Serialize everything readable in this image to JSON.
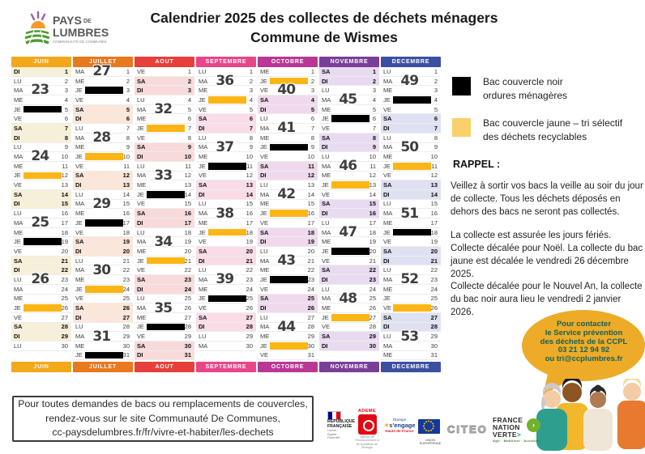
{
  "header": {
    "logo": {
      "name_top": "PAYS",
      "name_top_small": "DE",
      "name_bottom": "LUMBRES",
      "tagline": "COMMUNAUTÉ DE COMMUNES"
    },
    "title1": "Calendrier 2025 des collectes de déchets ménagers",
    "title2": "Commune de Wismes"
  },
  "colors": {
    "bar_black": "#000000",
    "bar_yellow": "#FBB515",
    "legend_yellow": "#F9D06A",
    "week_label": "#3F3F3F",
    "bubble_bg": "#EDAB27",
    "bubble_text": "#156058"
  },
  "months": [
    {
      "name": "JUIN",
      "color": "#F3A81B",
      "tint": "#F7F0D8",
      "days": [
        {
          "d": "DI",
          "n": 1
        },
        {
          "d": "LU",
          "n": 2
        },
        {
          "d": "MA",
          "n": 3,
          "wk": 23
        },
        {
          "d": "ME",
          "n": 4
        },
        {
          "d": "JE",
          "n": 5,
          "bar": "black"
        },
        {
          "d": "VE",
          "n": 6
        },
        {
          "d": "SA",
          "n": 7
        },
        {
          "d": "DI",
          "n": 8
        },
        {
          "d": "LU",
          "n": 9
        },
        {
          "d": "MA",
          "n": 10,
          "wk": 24
        },
        {
          "d": "ME",
          "n": 11
        },
        {
          "d": "JE",
          "n": 12,
          "bar": "yellow"
        },
        {
          "d": "VE",
          "n": 13
        },
        {
          "d": "SA",
          "n": 14
        },
        {
          "d": "DI",
          "n": 15
        },
        {
          "d": "LU",
          "n": 16
        },
        {
          "d": "MA",
          "n": 17,
          "wk": 25
        },
        {
          "d": "ME",
          "n": 18
        },
        {
          "d": "JE",
          "n": 19,
          "bar": "black"
        },
        {
          "d": "VE",
          "n": 20
        },
        {
          "d": "SA",
          "n": 21
        },
        {
          "d": "DI",
          "n": 22
        },
        {
          "d": "LU",
          "n": 23,
          "wk": 26
        },
        {
          "d": "MA",
          "n": 24
        },
        {
          "d": "ME",
          "n": 25
        },
        {
          "d": "JE",
          "n": 26,
          "bar": "yellow"
        },
        {
          "d": "VE",
          "n": 27
        },
        {
          "d": "SA",
          "n": 28
        },
        {
          "d": "DI",
          "n": 29
        },
        {
          "d": "LU",
          "n": 30
        }
      ]
    },
    {
      "name": "JUILLET",
      "color": "#E8791E",
      "tint": "#FBE6D9",
      "days": [
        {
          "d": "MA",
          "n": 1,
          "wk": 27
        },
        {
          "d": "ME",
          "n": 2
        },
        {
          "d": "JE",
          "n": 3,
          "bar": "black"
        },
        {
          "d": "VE",
          "n": 4
        },
        {
          "d": "SA",
          "n": 5
        },
        {
          "d": "DI",
          "n": 6
        },
        {
          "d": "LU",
          "n": 7
        },
        {
          "d": "MA",
          "n": 8,
          "wk": 28
        },
        {
          "d": "ME",
          "n": 9
        },
        {
          "d": "JE",
          "n": 10,
          "bar": "yellow"
        },
        {
          "d": "VE",
          "n": 11
        },
        {
          "d": "SA",
          "n": 12
        },
        {
          "d": "DI",
          "n": 13
        },
        {
          "d": "LU",
          "n": 14
        },
        {
          "d": "MA",
          "n": 15,
          "wk": 29
        },
        {
          "d": "ME",
          "n": 16
        },
        {
          "d": "JE",
          "n": 17,
          "bar": "black"
        },
        {
          "d": "VE",
          "n": 18
        },
        {
          "d": "SA",
          "n": 19
        },
        {
          "d": "DI",
          "n": 20
        },
        {
          "d": "LU",
          "n": 21
        },
        {
          "d": "MA",
          "n": 22,
          "wk": 30
        },
        {
          "d": "ME",
          "n": 23
        },
        {
          "d": "JE",
          "n": 24,
          "bar": "yellow"
        },
        {
          "d": "VE",
          "n": 25
        },
        {
          "d": "SA",
          "n": 26
        },
        {
          "d": "DI",
          "n": 27
        },
        {
          "d": "LU",
          "n": 28
        },
        {
          "d": "MA",
          "n": 29,
          "wk": 31
        },
        {
          "d": "ME",
          "n": 30
        },
        {
          "d": "JE",
          "n": 31,
          "bar": "black"
        }
      ]
    },
    {
      "name": "AOUT",
      "color": "#E6403A",
      "tint": "#F9DADB",
      "days": [
        {
          "d": "VE",
          "n": 1
        },
        {
          "d": "SA",
          "n": 2
        },
        {
          "d": "DI",
          "n": 3
        },
        {
          "d": "LU",
          "n": 4
        },
        {
          "d": "MA",
          "n": 5,
          "wk": 32
        },
        {
          "d": "ME",
          "n": 6
        },
        {
          "d": "JE",
          "n": 7,
          "bar": "yellow"
        },
        {
          "d": "VE",
          "n": 8
        },
        {
          "d": "SA",
          "n": 9
        },
        {
          "d": "DI",
          "n": 10
        },
        {
          "d": "LU",
          "n": 11
        },
        {
          "d": "MA",
          "n": 12,
          "wk": 33
        },
        {
          "d": "ME",
          "n": 13
        },
        {
          "d": "JE",
          "n": 14,
          "bar": "black"
        },
        {
          "d": "VE",
          "n": 15
        },
        {
          "d": "SA",
          "n": 16
        },
        {
          "d": "DI",
          "n": 17
        },
        {
          "d": "LU",
          "n": 18
        },
        {
          "d": "MA",
          "n": 19,
          "wk": 34
        },
        {
          "d": "ME",
          "n": 20
        },
        {
          "d": "JE",
          "n": 21,
          "bar": "yellow"
        },
        {
          "d": "VE",
          "n": 22
        },
        {
          "d": "SA",
          "n": 23
        },
        {
          "d": "DI",
          "n": 24
        },
        {
          "d": "LU",
          "n": 25
        },
        {
          "d": "MA",
          "n": 26,
          "wk": 35
        },
        {
          "d": "ME",
          "n": 27
        },
        {
          "d": "JE",
          "n": 28,
          "bar": "black"
        },
        {
          "d": "VE",
          "n": 29
        },
        {
          "d": "SA",
          "n": 30
        },
        {
          "d": "DI",
          "n": 31
        }
      ]
    },
    {
      "name": "SEPTEMBRE",
      "color": "#E74689",
      "tint": "#FADCE8",
      "days": [
        {
          "d": "LU",
          "n": 1
        },
        {
          "d": "MA",
          "n": 2,
          "wk": 36
        },
        {
          "d": "ME",
          "n": 3
        },
        {
          "d": "JE",
          "n": 4,
          "bar": "yellow"
        },
        {
          "d": "VE",
          "n": 5
        },
        {
          "d": "SA",
          "n": 6
        },
        {
          "d": "DI",
          "n": 7
        },
        {
          "d": "LU",
          "n": 8
        },
        {
          "d": "MA",
          "n": 9,
          "wk": 37
        },
        {
          "d": "ME",
          "n": 10
        },
        {
          "d": "JE",
          "n": 11,
          "bar": "black"
        },
        {
          "d": "VE",
          "n": 12
        },
        {
          "d": "SA",
          "n": 13
        },
        {
          "d": "DI",
          "n": 14
        },
        {
          "d": "LU",
          "n": 15
        },
        {
          "d": "MA",
          "n": 16,
          "wk": 38
        },
        {
          "d": "ME",
          "n": 17
        },
        {
          "d": "JE",
          "n": 18,
          "bar": "yellow"
        },
        {
          "d": "VE",
          "n": 19
        },
        {
          "d": "SA",
          "n": 20
        },
        {
          "d": "DI",
          "n": 21
        },
        {
          "d": "LU",
          "n": 22
        },
        {
          "d": "MA",
          "n": 23,
          "wk": 39
        },
        {
          "d": "ME",
          "n": 24
        },
        {
          "d": "JE",
          "n": 25,
          "bar": "black"
        },
        {
          "d": "VE",
          "n": 26
        },
        {
          "d": "SA",
          "n": 27
        },
        {
          "d": "DI",
          "n": 28
        },
        {
          "d": "LU",
          "n": 29
        },
        {
          "d": "MA",
          "n": 30
        }
      ]
    },
    {
      "name": "OCTOBRE",
      "color": "#B93895",
      "tint": "#F0D9ED",
      "days": [
        {
          "d": "ME",
          "n": 1
        },
        {
          "d": "JE",
          "n": 2,
          "bar": "yellow"
        },
        {
          "d": "VE",
          "n": 3,
          "wk": 40
        },
        {
          "d": "SA",
          "n": 4
        },
        {
          "d": "DI",
          "n": 5
        },
        {
          "d": "LU",
          "n": 6
        },
        {
          "d": "MA",
          "n": 7,
          "wk": 41
        },
        {
          "d": "ME",
          "n": 8
        },
        {
          "d": "JE",
          "n": 9,
          "bar": "black"
        },
        {
          "d": "VE",
          "n": 10
        },
        {
          "d": "SA",
          "n": 11
        },
        {
          "d": "DI",
          "n": 12
        },
        {
          "d": "LU",
          "n": 13
        },
        {
          "d": "MA",
          "n": 14,
          "wk": 42
        },
        {
          "d": "ME",
          "n": 15
        },
        {
          "d": "JE",
          "n": 16,
          "bar": "yellow"
        },
        {
          "d": "VE",
          "n": 17
        },
        {
          "d": "SA",
          "n": 18
        },
        {
          "d": "DI",
          "n": 19
        },
        {
          "d": "LU",
          "n": 20
        },
        {
          "d": "MA",
          "n": 21,
          "wk": 43
        },
        {
          "d": "ME",
          "n": 22
        },
        {
          "d": "JE",
          "n": 23,
          "bar": "black"
        },
        {
          "d": "VE",
          "n": 24
        },
        {
          "d": "SA",
          "n": 25
        },
        {
          "d": "DI",
          "n": 26
        },
        {
          "d": "LU",
          "n": 27
        },
        {
          "d": "MA",
          "n": 28,
          "wk": 44
        },
        {
          "d": "ME",
          "n": 29
        },
        {
          "d": "JE",
          "n": 30,
          "bar": "yellow"
        },
        {
          "d": "VE",
          "n": 31
        }
      ]
    },
    {
      "name": "NOVEMBRE",
      "color": "#7A3E99",
      "tint": "#E8DBF1",
      "days": [
        {
          "d": "SA",
          "n": 1
        },
        {
          "d": "DI",
          "n": 2
        },
        {
          "d": "LU",
          "n": 3
        },
        {
          "d": "MA",
          "n": 4,
          "wk": 45
        },
        {
          "d": "ME",
          "n": 5
        },
        {
          "d": "JE",
          "n": 6,
          "bar": "black"
        },
        {
          "d": "VE",
          "n": 7
        },
        {
          "d": "SA",
          "n": 8
        },
        {
          "d": "DI",
          "n": 9
        },
        {
          "d": "LU",
          "n": 10
        },
        {
          "d": "MA",
          "n": 11,
          "wk": 46
        },
        {
          "d": "ME",
          "n": 12
        },
        {
          "d": "JE",
          "n": 13,
          "bar": "yellow"
        },
        {
          "d": "VE",
          "n": 14
        },
        {
          "d": "SA",
          "n": 15
        },
        {
          "d": "DI",
          "n": 16
        },
        {
          "d": "LU",
          "n": 17
        },
        {
          "d": "MA",
          "n": 18,
          "wk": 47
        },
        {
          "d": "ME",
          "n": 19
        },
        {
          "d": "JE",
          "n": 20,
          "bar": "black"
        },
        {
          "d": "VE",
          "n": 21
        },
        {
          "d": "SA",
          "n": 22
        },
        {
          "d": "DI",
          "n": 23
        },
        {
          "d": "LU",
          "n": 24
        },
        {
          "d": "MA",
          "n": 25,
          "wk": 48
        },
        {
          "d": "ME",
          "n": 26
        },
        {
          "d": "JE",
          "n": 27,
          "bar": "yellow"
        },
        {
          "d": "VE",
          "n": 28
        },
        {
          "d": "SA",
          "n": 29
        },
        {
          "d": "DI",
          "n": 30
        }
      ]
    },
    {
      "name": "DECEMBRE",
      "color": "#3C50A1",
      "tint": "#DEE1F2",
      "days": [
        {
          "d": "LU",
          "n": 1
        },
        {
          "d": "MA",
          "n": 2,
          "wk": 49
        },
        {
          "d": "ME",
          "n": 3
        },
        {
          "d": "JE",
          "n": 4,
          "bar": "black"
        },
        {
          "d": "VE",
          "n": 5
        },
        {
          "d": "SA",
          "n": 6
        },
        {
          "d": "DI",
          "n": 7
        },
        {
          "d": "LU",
          "n": 8
        },
        {
          "d": "MA",
          "n": 9,
          "wk": 50
        },
        {
          "d": "ME",
          "n": 10
        },
        {
          "d": "JE",
          "n": 11,
          "bar": "yellow"
        },
        {
          "d": "VE",
          "n": 12
        },
        {
          "d": "SA",
          "n": 13
        },
        {
          "d": "DI",
          "n": 14
        },
        {
          "d": "LU",
          "n": 15
        },
        {
          "d": "MA",
          "n": 16,
          "wk": 51
        },
        {
          "d": "ME",
          "n": 17
        },
        {
          "d": "JE",
          "n": 18,
          "bar": "black"
        },
        {
          "d": "VE",
          "n": 19
        },
        {
          "d": "SA",
          "n": 20
        },
        {
          "d": "DI",
          "n": 21
        },
        {
          "d": "LU",
          "n": 22
        },
        {
          "d": "MA",
          "n": 23,
          "wk": 52
        },
        {
          "d": "ME",
          "n": 24
        },
        {
          "d": "JE",
          "n": 25
        },
        {
          "d": "VE",
          "n": 26,
          "bar": "yellow"
        },
        {
          "d": "SA",
          "n": 27
        },
        {
          "d": "DI",
          "n": 28
        },
        {
          "d": "LU",
          "n": 29,
          "wk": 53
        },
        {
          "d": "MA",
          "n": 30
        },
        {
          "d": "ME",
          "n": 31
        }
      ]
    }
  ],
  "legend": [
    {
      "line1": "Bac couvercle noir",
      "line2": "ordures ménagères"
    },
    {
      "line1": "Bac couvercle jaune – tri sélectif",
      "line2": "des déchets recyclables"
    }
  ],
  "rappel": {
    "heading": "RAPPEL :",
    "para1": "Veillez à sortir vos bacs la veille au soir du jour de collecte. Tous les déchets déposés en dehors des bacs ne seront pas collectés.",
    "para2_lines": [
      "La collecte est assurée les jours fériés.",
      "Collecte décalée pour Noël. La collecte du bac jaune est décalée le vendredi 26 décembre 2025.",
      "Collecte décalée pour le Nouvel An, la collecte du bac noir aura lieu le vendredi 2 janvier 2026."
    ]
  },
  "bubble_lines": [
    "Pour contacter",
    "le Service prévention",
    "des déchets de la CCPL",
    "03 21 12 94 92",
    "ou tri@ccplumbres.fr"
  ],
  "info_box_lines": [
    "Pour toutes demandes de bacs ou remplacements de couvercles,",
    "rendez-vous sur le site Communauté De Communes,",
    "cc-paysdelumbres.fr/fr/vivre-et-habiter/les-dechets"
  ],
  "partner_logos": {
    "republique_title": "RÉPUBLIQUE FRANÇAISE",
    "republique_motto1": "Liberté",
    "republique_motto2": "Égalité",
    "republique_motto3": "Fraternité",
    "ademe": "ADEME",
    "ademe_sub": "Agence de l'Environnement et de la Maîtrise de l'Énergie",
    "europe_line1": "l'Europe",
    "europe_line2": "s'engage",
    "europe_line3": "Hauts-de-France",
    "eu_caption": "UNION EUROPÉENNE",
    "citeo": "CITEO",
    "fnv_line1": "FRANCE",
    "fnv_line2": "NATION",
    "fnv_line3": "VERTE",
    "fnv_chevron": ">",
    "fnv_tagline": "Agir · Mobiliser · Accélérer"
  }
}
